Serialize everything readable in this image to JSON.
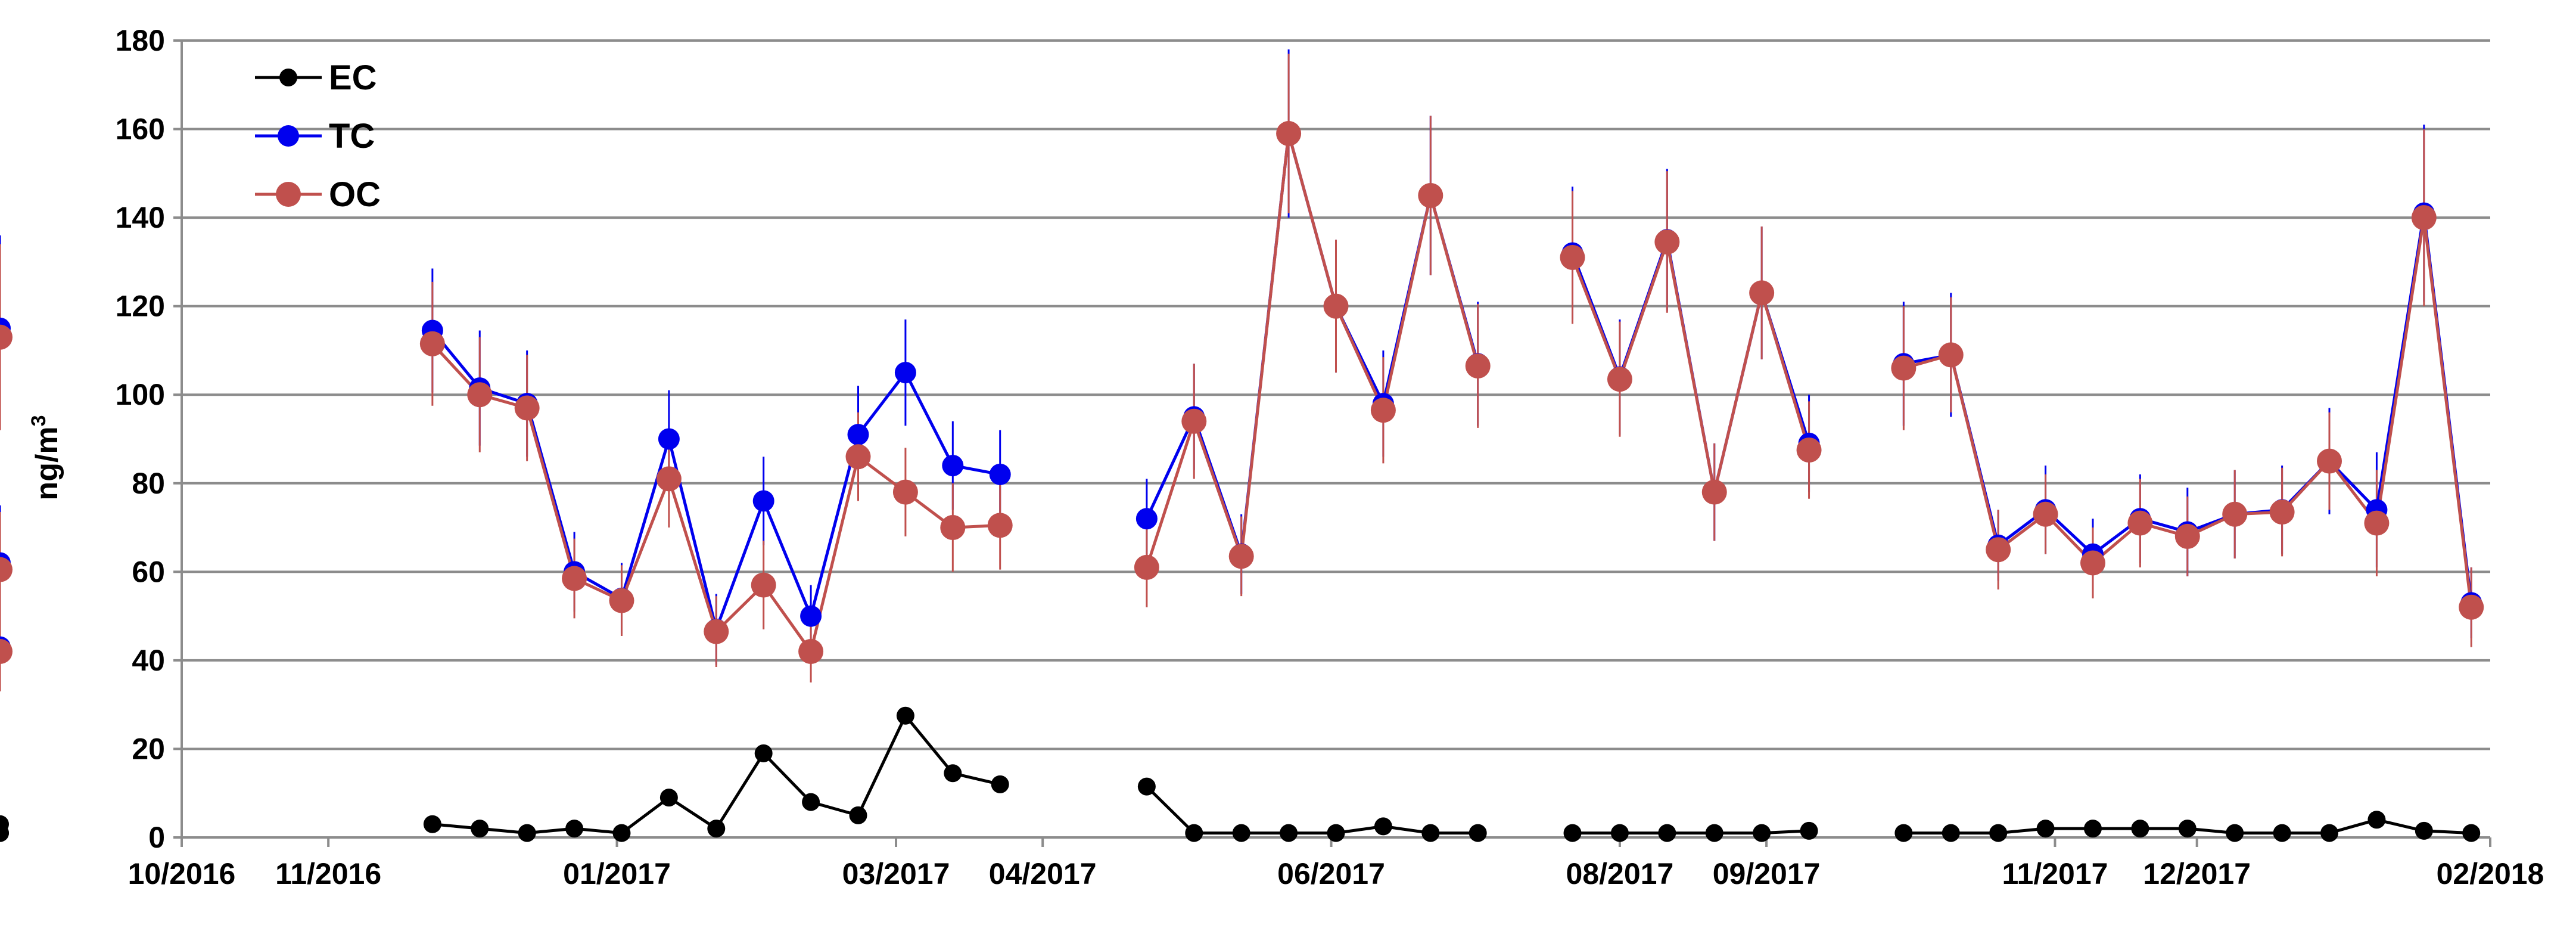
{
  "chart_data": {
    "type": "line",
    "title": "",
    "xlabel": "",
    "ylabel": "ng/m",
    "ylabel_superscript": "3",
    "ylim": [
      0,
      180
    ],
    "yticks": [
      0,
      20,
      40,
      60,
      80,
      100,
      120,
      140,
      160,
      180
    ],
    "xlim": [
      "2016-09-30",
      "2018-01-31"
    ],
    "xticks": [
      "2016-09-30",
      "2016-10-31",
      "2016-12-31",
      "2017-02-28",
      "2017-03-31",
      "2017-05-31",
      "2017-07-31",
      "2017-08-31",
      "2017-10-31",
      "2017-11-30",
      "2018-01-31"
    ],
    "xtick_labels": [
      "10/2016",
      "11/2016",
      "01/2017",
      "03/2017",
      "04/2017",
      "06/2017",
      "08/2017",
      "09/2017",
      "11/2017",
      "12/2017",
      "02/2018"
    ],
    "grid": "horizontal",
    "legend_position": "top-left",
    "segments": [
      [
        "2016-11-22",
        "2016-12-02",
        "2016-12-12",
        "2016-12-22",
        "2017-01-01",
        "2017-01-11",
        "2017-01-21",
        "2017-01-31",
        "2017-02-10",
        "2017-02-20",
        "2017-03-02",
        "2017-03-12",
        "2017-03-22"
      ],
      [
        "2017-04-22",
        "2017-05-02",
        "2017-05-12",
        "2017-05-22",
        "2017-06-01",
        "2017-06-11",
        "2017-06-21",
        "2017-07-01"
      ],
      [
        "2017-07-21",
        "2017-07-31",
        "2017-08-10",
        "2017-08-20",
        "2017-08-30",
        "2017-09-09"
      ],
      [
        "2017-09-29",
        "2017-10-09",
        "2017-10-19",
        "2017-10-29",
        "2017-11-08",
        "2017-11-18",
        "2017-11-28",
        "2017-12-08",
        "2017-12-18",
        "2017-12-28",
        "2018-01-07",
        "2018-01-17",
        "2018-01-27"
      ]
    ],
    "series": [
      {
        "name": "EC",
        "color": "#000000",
        "values": [
          3,
          2,
          1,
          2,
          1,
          9,
          2,
          19,
          8,
          5,
          27.5,
          14.5,
          12,
          11.5,
          1,
          1,
          1,
          1,
          2.5,
          1,
          1,
          1,
          1,
          1,
          1,
          1,
          1.5,
          1,
          1,
          1,
          2,
          2,
          2,
          2,
          1,
          1,
          1,
          4,
          1.5,
          1,
          3,
          1,
          1
        ],
        "errors": []
      },
      {
        "name": "TC",
        "color": "#0000ee",
        "values": [
          114.5,
          101.5,
          98,
          60,
          54,
          90,
          47,
          76,
          50,
          91,
          105,
          84,
          82,
          72,
          95,
          64,
          159,
          120,
          98,
          145,
          107,
          132,
          104,
          135,
          78,
          123,
          89,
          107,
          109,
          66,
          74,
          64,
          72,
          69,
          73,
          74,
          85,
          74,
          141,
          53,
          115,
          62,
          43
        ],
        "errors": [
          14,
          13,
          12,
          9,
          8,
          11,
          8,
          10,
          7,
          11,
          12,
          10,
          10,
          9,
          12,
          9,
          19,
          15,
          12,
          18,
          14,
          15,
          13,
          16,
          11,
          15,
          11,
          14,
          14,
          8,
          10,
          8,
          10,
          10,
          10,
          10,
          12,
          13,
          20,
          8,
          21,
          13,
          8
        ]
      },
      {
        "name": "OC",
        "color": "#c0504d",
        "values": [
          111.5,
          100,
          97,
          58.5,
          53.5,
          81,
          46.5,
          57,
          42,
          86,
          78,
          70,
          70.5,
          61,
          94,
          63.5,
          159,
          120,
          96.5,
          145,
          106.5,
          131,
          103.5,
          134.5,
          78,
          123,
          87.5,
          106,
          109,
          65,
          73,
          62,
          71,
          68,
          73,
          73.5,
          85,
          71,
          140,
          52,
          113,
          60.5,
          42
        ],
        "errors": [
          14,
          13,
          12,
          9,
          8,
          11,
          8,
          10,
          7,
          10,
          10,
          10,
          10,
          9,
          13,
          9,
          18,
          15,
          12,
          18,
          14,
          15,
          13,
          16,
          11,
          15,
          11,
          14,
          13,
          9,
          9,
          8,
          10,
          9,
          10,
          10,
          11,
          12,
          20,
          9,
          21,
          13,
          9
        ]
      }
    ]
  }
}
